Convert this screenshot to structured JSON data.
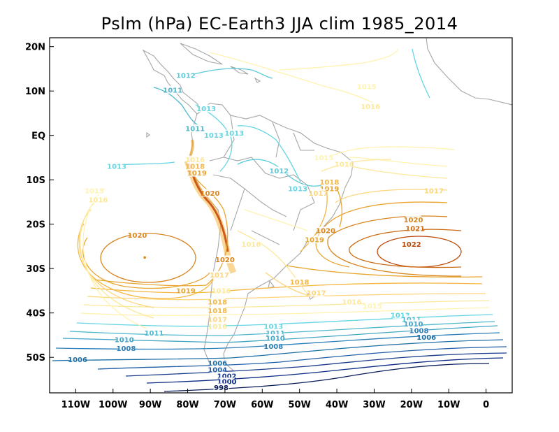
{
  "chart_data": {
    "type": "contour",
    "title": "Pslm (hPa) EC-Earth3 JJA clim 1985_2014",
    "variable": "Pslm",
    "units": "hPa",
    "xlabel": "",
    "ylabel": "",
    "xlim": [
      -117,
      7
    ],
    "ylim": [
      -58,
      22
    ],
    "x_ticks": [
      {
        "value": -110,
        "label": "110W"
      },
      {
        "value": -100,
        "label": "100W"
      },
      {
        "value": -90,
        "label": "90W"
      },
      {
        "value": -80,
        "label": "80W"
      },
      {
        "value": -70,
        "label": "70W"
      },
      {
        "value": -60,
        "label": "60W"
      },
      {
        "value": -50,
        "label": "50W"
      },
      {
        "value": -40,
        "label": "40W"
      },
      {
        "value": -30,
        "label": "30W"
      },
      {
        "value": -20,
        "label": "20W"
      },
      {
        "value": -10,
        "label": "10W"
      },
      {
        "value": 0,
        "label": "0"
      }
    ],
    "y_ticks": [
      {
        "value": 20,
        "label": "20N"
      },
      {
        "value": 10,
        "label": "10N"
      },
      {
        "value": 0,
        "label": "EQ"
      },
      {
        "value": -10,
        "label": "10S"
      },
      {
        "value": -20,
        "label": "20S"
      },
      {
        "value": -30,
        "label": "30S"
      },
      {
        "value": -40,
        "label": "40S"
      },
      {
        "value": -50,
        "label": "50S"
      }
    ],
    "contour_levels": [
      998,
      1000,
      1002,
      1004,
      1006,
      1008,
      1010,
      1011,
      1012,
      1013,
      1015,
      1016,
      1017,
      1018,
      1019,
      1020,
      1021,
      1022
    ],
    "level_colors": {
      "998": "#081d58",
      "1000": "#0c2c84",
      "1002": "#1a3d8c",
      "1004": "#225ea8",
      "1006": "#1d6fa5",
      "1008": "#2c7fb8",
      "1010": "#41a5c4",
      "1011": "#4fb8cc",
      "1012": "#5ccbd8",
      "1013": "#63d6e2",
      "1015": "#fff3b0",
      "1016": "#fde89a",
      "1017": "#fdd57a",
      "1018": "#f5b642",
      "1019": "#e8a530",
      "1020": "#d9861f",
      "1021": "#cc6a12",
      "1022": "#b84a08"
    },
    "label_points": [
      {
        "text": "1012",
        "lon": -80.5,
        "lat": 13.5
      },
      {
        "text": "1011",
        "lon": -84,
        "lat": 10.2
      },
      {
        "text": "1013",
        "lon": -75,
        "lat": 6
      },
      {
        "text": "1011",
        "lon": -78,
        "lat": 1.5
      },
      {
        "text": "1013",
        "lon": -73,
        "lat": 0
      },
      {
        "text": "1013",
        "lon": -67.5,
        "lat": 0.5
      },
      {
        "text": "1015",
        "lon": -32,
        "lat": 11
      },
      {
        "text": "1016",
        "lon": -31,
        "lat": 6.5
      },
      {
        "text": "1016",
        "lon": -78,
        "lat": -5.5
      },
      {
        "text": "1018",
        "lon": -78,
        "lat": -7
      },
      {
        "text": "1019",
        "lon": -77.5,
        "lat": -8.5
      },
      {
        "text": "1013",
        "lon": -99,
        "lat": -7
      },
      {
        "text": "1012",
        "lon": -55.5,
        "lat": -8
      },
      {
        "text": "1013",
        "lon": -50.5,
        "lat": -12
      },
      {
        "text": "1015",
        "lon": -43.5,
        "lat": -5
      },
      {
        "text": "1016",
        "lon": -38,
        "lat": -6.5
      },
      {
        "text": "1018",
        "lon": -42,
        "lat": -10.5
      },
      {
        "text": "1019",
        "lon": -42,
        "lat": -12
      },
      {
        "text": "1017",
        "lon": -45,
        "lat": -13
      },
      {
        "text": "1017",
        "lon": -14,
        "lat": -12.5
      },
      {
        "text": "1015",
        "lon": -105,
        "lat": -12.5
      },
      {
        "text": "1016",
        "lon": -104,
        "lat": -14.5
      },
      {
        "text": "1020",
        "lon": -74,
        "lat": -13
      },
      {
        "text": "1020",
        "lon": -19.5,
        "lat": -19
      },
      {
        "text": "1021",
        "lon": -19,
        "lat": -21
      },
      {
        "text": "1022",
        "lon": -20,
        "lat": -24.5
      },
      {
        "text": "1020",
        "lon": -93.5,
        "lat": -22.5
      },
      {
        "text": "1020",
        "lon": -43,
        "lat": -21.5
      },
      {
        "text": "1019",
        "lon": -46,
        "lat": -23.5
      },
      {
        "text": "1016",
        "lon": -63,
        "lat": -24.5
      },
      {
        "text": "1020",
        "lon": -70,
        "lat": -28
      },
      {
        "text": "1019",
        "lon": -80.5,
        "lat": -35
      },
      {
        "text": "1018",
        "lon": -50,
        "lat": -33
      },
      {
        "text": "1017",
        "lon": -45.5,
        "lat": -35.5
      },
      {
        "text": "1017",
        "lon": -71.5,
        "lat": -31.5
      },
      {
        "text": "1016",
        "lon": -71,
        "lat": -35
      },
      {
        "text": "1016",
        "lon": -36,
        "lat": -37.5
      },
      {
        "text": "1015",
        "lon": -30.5,
        "lat": -38.5
      },
      {
        "text": "1018",
        "lon": -72,
        "lat": -37.5
      },
      {
        "text": "1018",
        "lon": -72,
        "lat": -39.5
      },
      {
        "text": "1017",
        "lon": -72,
        "lat": -41.5
      },
      {
        "text": "1016",
        "lon": -72,
        "lat": -43
      },
      {
        "text": "1013",
        "lon": -23,
        "lat": -40.5
      },
      {
        "text": "1011",
        "lon": -20,
        "lat": -41.5
      },
      {
        "text": "1010",
        "lon": -19.5,
        "lat": -42.5
      },
      {
        "text": "1008",
        "lon": -18,
        "lat": -44
      },
      {
        "text": "1006",
        "lon": -16,
        "lat": -45.5
      },
      {
        "text": "1013",
        "lon": -57,
        "lat": -43
      },
      {
        "text": "1011",
        "lon": -56.5,
        "lat": -44.5
      },
      {
        "text": "1010",
        "lon": -56.5,
        "lat": -45.7
      },
      {
        "text": "1008",
        "lon": -57,
        "lat": -47.5
      },
      {
        "text": "1011",
        "lon": -89,
        "lat": -44.5
      },
      {
        "text": "1010",
        "lon": -97,
        "lat": -46
      },
      {
        "text": "1008",
        "lon": -96.5,
        "lat": -48
      },
      {
        "text": "1006",
        "lon": -109.5,
        "lat": -50.5
      },
      {
        "text": "1006",
        "lon": -72,
        "lat": -51.3
      },
      {
        "text": "1004",
        "lon": -72,
        "lat": -52.8
      },
      {
        "text": "1002",
        "lon": -69.5,
        "lat": -54.2
      },
      {
        "text": "1000",
        "lon": -69.5,
        "lat": -55.5
      },
      {
        "text": "998",
        "lon": -71,
        "lat": -56.8
      }
    ],
    "high_center": {
      "lon": -91.5,
      "lat": -27.5
    }
  }
}
